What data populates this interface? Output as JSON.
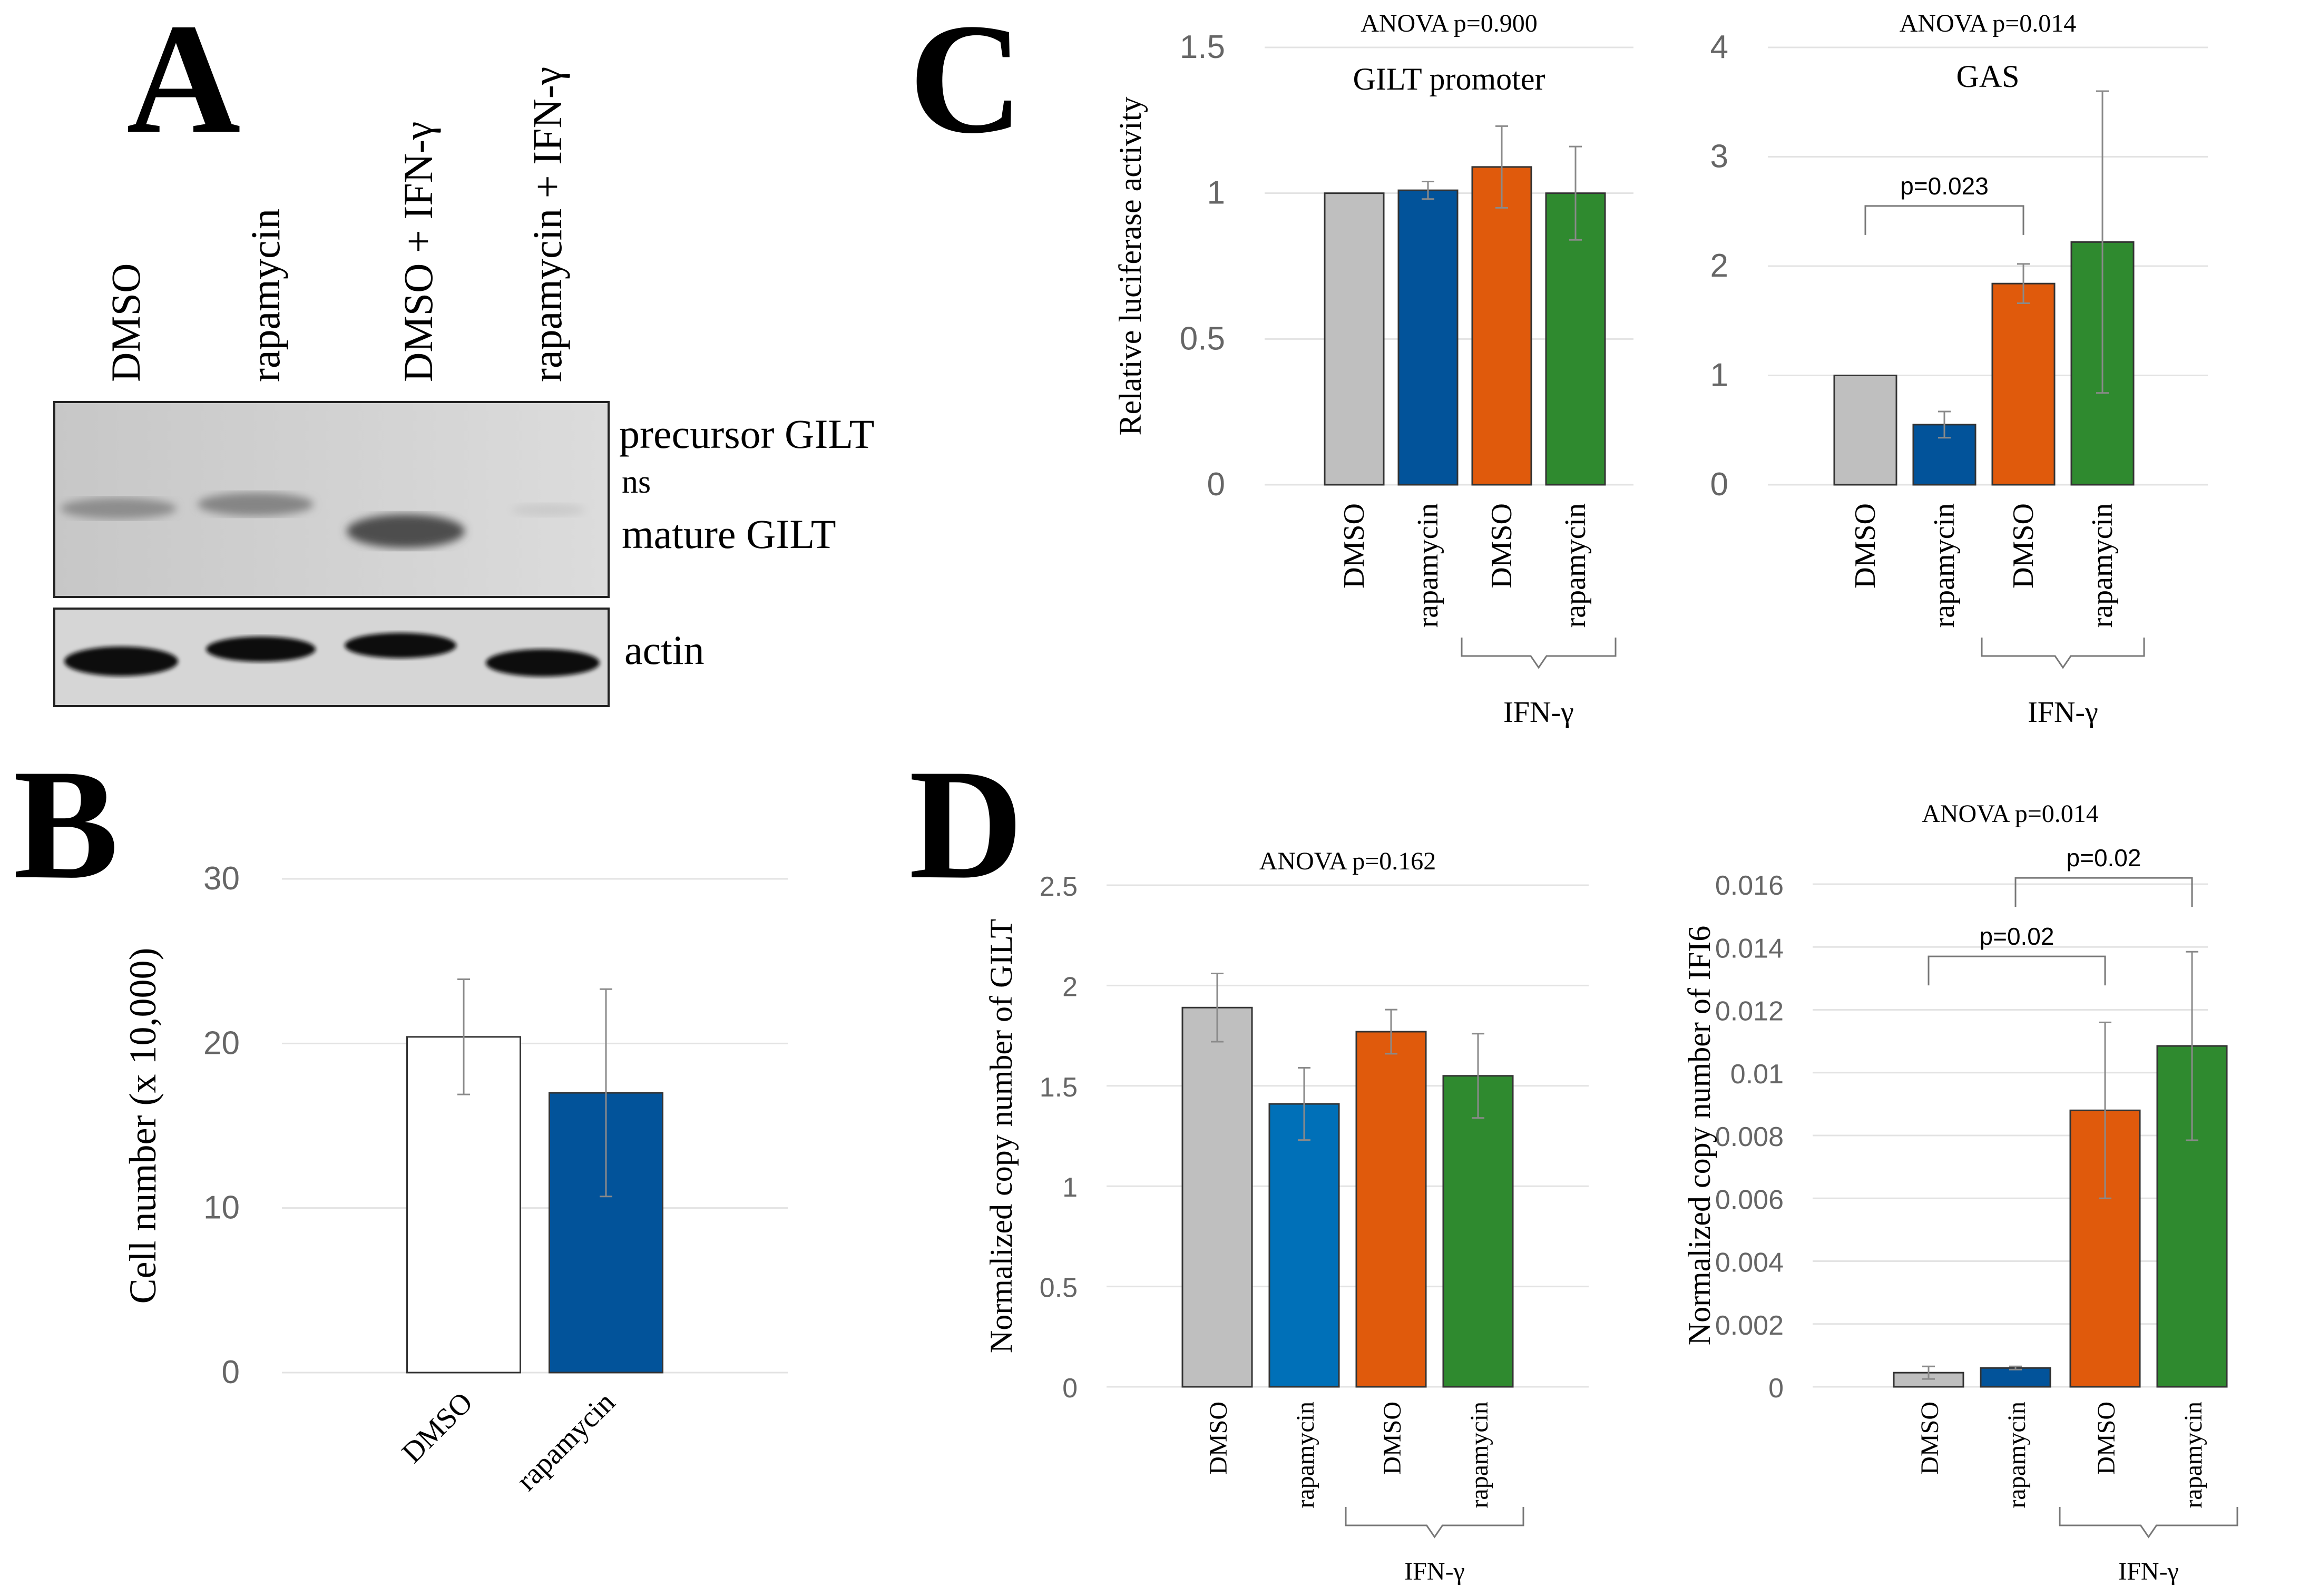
{
  "panels": {
    "A": {
      "letter": "A",
      "lanes": [
        "DMSO",
        "rapamycin",
        "DMSO + IFN-γ",
        "rapamycin + IFN-γ"
      ],
      "band_labels": [
        "precursor GILT",
        "ns",
        "mature GILT",
        "actin"
      ]
    },
    "B": {
      "letter": "B"
    },
    "C": {
      "letter": "C"
    },
    "D": {
      "letter": "D"
    }
  },
  "colors": {
    "gray": "#bfbfbf",
    "blue": "#02539a",
    "blue_light": "#0070b8",
    "orange": "#e05a0c",
    "green": "#2f8a2f",
    "white": "#ffffff"
  },
  "chart_data": [
    {
      "id": "B",
      "type": "bar",
      "title": "",
      "ylabel": "Cell number (x 10,000)",
      "ylim": [
        0,
        30
      ],
      "yticks": [
        0,
        10,
        20,
        30
      ],
      "categories": [
        "DMSO",
        "rapamycin"
      ],
      "values": [
        20.4,
        17.0
      ],
      "errors": [
        3.5,
        6.3
      ],
      "bar_colors": [
        "white",
        "blue"
      ]
    },
    {
      "id": "C1",
      "type": "bar",
      "title": "ANOVA p=0.900",
      "subtitle": "GILT promoter",
      "ylabel": "Relative luciferase activity",
      "ylim": [
        0,
        1.5
      ],
      "yticks": [
        0,
        0.5,
        1,
        1.5
      ],
      "ytick_labels": [
        "0",
        "0.5",
        "1",
        "1.5"
      ],
      "categories": [
        "DMSO",
        "rapamycin",
        "DMSO",
        "rapamycin"
      ],
      "group_label": "IFN-γ",
      "values": [
        1.0,
        1.01,
        1.09,
        1.0
      ],
      "errors": [
        0.0,
        0.03,
        0.14,
        0.16
      ],
      "bar_colors": [
        "gray",
        "blue",
        "orange",
        "green"
      ]
    },
    {
      "id": "C2",
      "type": "bar",
      "title": "ANOVA p=0.014",
      "subtitle": "GAS",
      "ylabel": "",
      "ylim": [
        0,
        4
      ],
      "yticks": [
        0,
        1,
        2,
        3,
        4
      ],
      "ytick_labels": [
        "0",
        "1",
        "2",
        "3",
        "4"
      ],
      "categories": [
        "DMSO",
        "rapamycin",
        "DMSO",
        "rapamycin"
      ],
      "group_label": "IFN-γ",
      "values": [
        1.0,
        0.55,
        1.84,
        2.22
      ],
      "errors": [
        0.0,
        0.12,
        0.18,
        1.38
      ],
      "bar_colors": [
        "gray",
        "blue",
        "orange",
        "green"
      ],
      "comparisons": [
        {
          "from": 0,
          "to": 2,
          "label": "p=0.023",
          "level": 2.55
        }
      ]
    },
    {
      "id": "D1",
      "type": "bar",
      "title": "ANOVA p=0.162",
      "ylabel": "Normalized copy number of GILT",
      "ylim": [
        0,
        2.5
      ],
      "yticks": [
        0,
        0.5,
        1,
        1.5,
        2,
        2.5
      ],
      "ytick_labels": [
        "0",
        "0.5",
        "1",
        "1.5",
        "2",
        "2.5"
      ],
      "categories": [
        "DMSO",
        "rapamycin",
        "DMSO",
        "rapamycin"
      ],
      "group_label": "IFN-γ",
      "values": [
        1.89,
        1.41,
        1.77,
        1.55
      ],
      "errors": [
        0.17,
        0.18,
        0.11,
        0.21
      ],
      "bar_colors": [
        "gray",
        "blue_light",
        "orange",
        "green"
      ]
    },
    {
      "id": "D2",
      "type": "bar",
      "title": "ANOVA p=0.014",
      "ylabel": "Normalized copy number of IFI6",
      "ylim": [
        0,
        0.016
      ],
      "yticks": [
        0,
        0.002,
        0.004,
        0.006,
        0.008,
        0.01,
        0.012,
        0.014,
        0.016
      ],
      "ytick_labels": [
        "0",
        "0.002",
        "0.004",
        "0.006",
        "0.008",
        "0.01",
        "0.012",
        "0.014",
        "0.016"
      ],
      "categories": [
        "DMSO",
        "rapamycin",
        "DMSO",
        "rapamycin"
      ],
      "group_label": "IFN-γ",
      "values": [
        0.00045,
        0.0006,
        0.0088,
        0.01085
      ],
      "errors": [
        0.0002,
        5e-05,
        0.0028,
        0.003
      ],
      "bar_colors": [
        "gray",
        "blue",
        "orange",
        "green"
      ],
      "comparisons": [
        {
          "from": 0,
          "to": 2,
          "label": "p=0.02",
          "level": 0.0137
        },
        {
          "from": 1,
          "to": 3,
          "label": "p=0.02",
          "level": 0.0162
        }
      ]
    }
  ]
}
